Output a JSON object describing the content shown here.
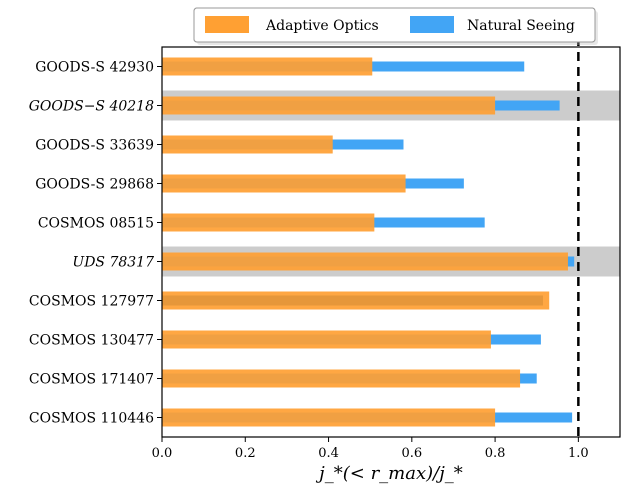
{
  "chart_data": {
    "type": "bar",
    "orientation": "horizontal",
    "categories": [
      {
        "label": "GOODS-S 42930",
        "italic": false,
        "highlight": false
      },
      {
        "label": "GOODS−S 40218",
        "italic": true,
        "highlight": true
      },
      {
        "label": "GOODS-S 33639",
        "italic": false,
        "highlight": false
      },
      {
        "label": "GOODS-S 29868",
        "italic": false,
        "highlight": false
      },
      {
        "label": "COSMOS 08515",
        "italic": false,
        "highlight": false
      },
      {
        "label": "UDS 78317",
        "italic": true,
        "highlight": true
      },
      {
        "label": "COSMOS 127977",
        "italic": false,
        "highlight": false
      },
      {
        "label": "COSMOS 130477",
        "italic": false,
        "highlight": false
      },
      {
        "label": "COSMOS 171407",
        "italic": false,
        "highlight": false
      },
      {
        "label": "COSMOS 110446",
        "italic": false,
        "highlight": false
      }
    ],
    "series": [
      {
        "name": "Adaptive Optics",
        "color": "#ffa033",
        "values": [
          0.505,
          0.8,
          0.41,
          0.585,
          0.51,
          0.975,
          0.93,
          0.79,
          0.86,
          0.8
        ]
      },
      {
        "name": "Natural Seeing",
        "color": "#42a5f5",
        "values": [
          0.87,
          0.955,
          0.58,
          0.725,
          0.775,
          0.99,
          0.915,
          0.91,
          0.9,
          0.985
        ]
      }
    ],
    "xlabel": "j_*(< r_max)/j_*",
    "xlim": [
      0.0,
      1.1
    ],
    "xticks": [
      "0.0",
      "0.2",
      "0.4",
      "0.6",
      "0.8",
      "1.0"
    ],
    "reference_line": 1.0,
    "legend": "top-right"
  }
}
